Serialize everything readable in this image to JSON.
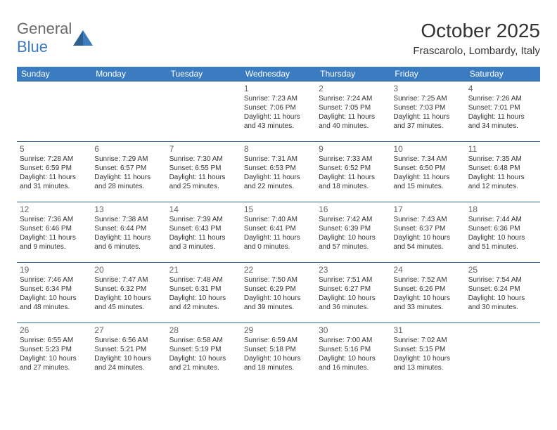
{
  "logo": {
    "text_a": "General",
    "text_b": "Blue"
  },
  "title": "October 2025",
  "location": "Frascarolo, Lombardy, Italy",
  "day_labels": [
    "Sunday",
    "Monday",
    "Tuesday",
    "Wednesday",
    "Thursday",
    "Friday",
    "Saturday"
  ],
  "colors": {
    "header_bg": "#3b7bbf",
    "row_border": "#2d5f8f",
    "logo_gray": "#6a6a6a",
    "logo_blue": "#3b7bbf",
    "text": "#333333",
    "daynum": "#666666"
  },
  "weeks": [
    [
      null,
      null,
      null,
      {
        "n": "1",
        "sr": "7:23 AM",
        "ss": "7:06 PM",
        "dh": "11",
        "dm": "43"
      },
      {
        "n": "2",
        "sr": "7:24 AM",
        "ss": "7:05 PM",
        "dh": "11",
        "dm": "40"
      },
      {
        "n": "3",
        "sr": "7:25 AM",
        "ss": "7:03 PM",
        "dh": "11",
        "dm": "37"
      },
      {
        "n": "4",
        "sr": "7:26 AM",
        "ss": "7:01 PM",
        "dh": "11",
        "dm": "34"
      }
    ],
    [
      {
        "n": "5",
        "sr": "7:28 AM",
        "ss": "6:59 PM",
        "dh": "11",
        "dm": "31"
      },
      {
        "n": "6",
        "sr": "7:29 AM",
        "ss": "6:57 PM",
        "dh": "11",
        "dm": "28"
      },
      {
        "n": "7",
        "sr": "7:30 AM",
        "ss": "6:55 PM",
        "dh": "11",
        "dm": "25"
      },
      {
        "n": "8",
        "sr": "7:31 AM",
        "ss": "6:53 PM",
        "dh": "11",
        "dm": "22"
      },
      {
        "n": "9",
        "sr": "7:33 AM",
        "ss": "6:52 PM",
        "dh": "11",
        "dm": "18"
      },
      {
        "n": "10",
        "sr": "7:34 AM",
        "ss": "6:50 PM",
        "dh": "11",
        "dm": "15"
      },
      {
        "n": "11",
        "sr": "7:35 AM",
        "ss": "6:48 PM",
        "dh": "11",
        "dm": "12"
      }
    ],
    [
      {
        "n": "12",
        "sr": "7:36 AM",
        "ss": "6:46 PM",
        "dh": "11",
        "dm": "9"
      },
      {
        "n": "13",
        "sr": "7:38 AM",
        "ss": "6:44 PM",
        "dh": "11",
        "dm": "6"
      },
      {
        "n": "14",
        "sr": "7:39 AM",
        "ss": "6:43 PM",
        "dh": "11",
        "dm": "3"
      },
      {
        "n": "15",
        "sr": "7:40 AM",
        "ss": "6:41 PM",
        "dh": "11",
        "dm": "0"
      },
      {
        "n": "16",
        "sr": "7:42 AM",
        "ss": "6:39 PM",
        "dh": "10",
        "dm": "57"
      },
      {
        "n": "17",
        "sr": "7:43 AM",
        "ss": "6:37 PM",
        "dh": "10",
        "dm": "54"
      },
      {
        "n": "18",
        "sr": "7:44 AM",
        "ss": "6:36 PM",
        "dh": "10",
        "dm": "51"
      }
    ],
    [
      {
        "n": "19",
        "sr": "7:46 AM",
        "ss": "6:34 PM",
        "dh": "10",
        "dm": "48"
      },
      {
        "n": "20",
        "sr": "7:47 AM",
        "ss": "6:32 PM",
        "dh": "10",
        "dm": "45"
      },
      {
        "n": "21",
        "sr": "7:48 AM",
        "ss": "6:31 PM",
        "dh": "10",
        "dm": "42"
      },
      {
        "n": "22",
        "sr": "7:50 AM",
        "ss": "6:29 PM",
        "dh": "10",
        "dm": "39"
      },
      {
        "n": "23",
        "sr": "7:51 AM",
        "ss": "6:27 PM",
        "dh": "10",
        "dm": "36"
      },
      {
        "n": "24",
        "sr": "7:52 AM",
        "ss": "6:26 PM",
        "dh": "10",
        "dm": "33"
      },
      {
        "n": "25",
        "sr": "7:54 AM",
        "ss": "6:24 PM",
        "dh": "10",
        "dm": "30"
      }
    ],
    [
      {
        "n": "26",
        "sr": "6:55 AM",
        "ss": "5:23 PM",
        "dh": "10",
        "dm": "27"
      },
      {
        "n": "27",
        "sr": "6:56 AM",
        "ss": "5:21 PM",
        "dh": "10",
        "dm": "24"
      },
      {
        "n": "28",
        "sr": "6:58 AM",
        "ss": "5:19 PM",
        "dh": "10",
        "dm": "21"
      },
      {
        "n": "29",
        "sr": "6:59 AM",
        "ss": "5:18 PM",
        "dh": "10",
        "dm": "18"
      },
      {
        "n": "30",
        "sr": "7:00 AM",
        "ss": "5:16 PM",
        "dh": "10",
        "dm": "16"
      },
      {
        "n": "31",
        "sr": "7:02 AM",
        "ss": "5:15 PM",
        "dh": "10",
        "dm": "13"
      },
      null
    ]
  ]
}
